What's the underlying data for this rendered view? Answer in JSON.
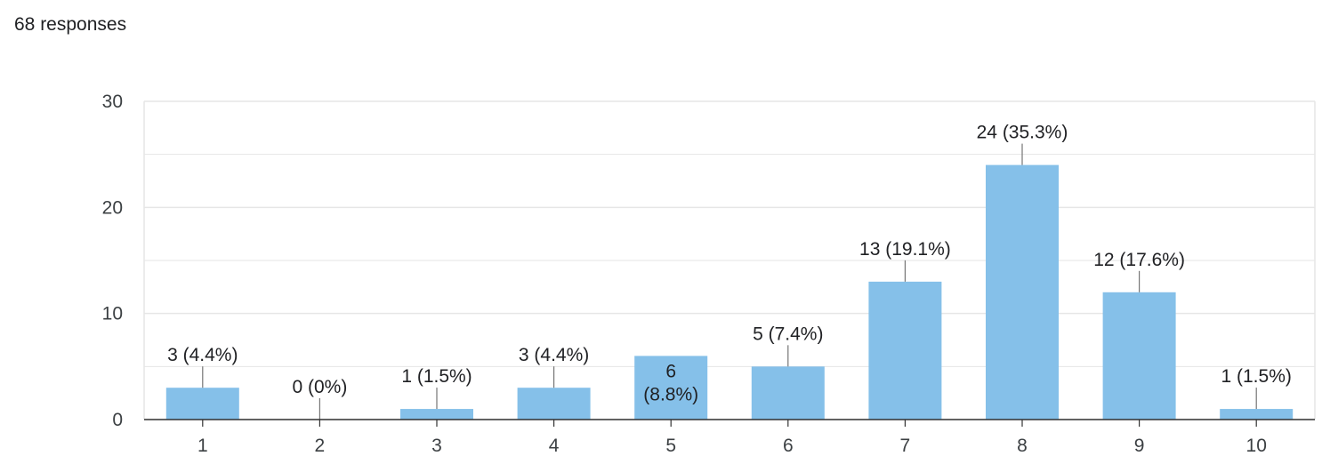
{
  "summary": {
    "responses_text": "68 responses"
  },
  "chart_data": {
    "type": "bar",
    "categories": [
      "1",
      "2",
      "3",
      "4",
      "5",
      "6",
      "7",
      "8",
      "9",
      "10"
    ],
    "values": [
      3,
      0,
      1,
      3,
      6,
      5,
      13,
      24,
      12,
      1
    ],
    "data_labels": [
      "3 (4.4%)",
      "0 (0%)",
      "1 (1.5%)",
      "3 (4.4%)",
      "6 (8.8%)",
      "5 (7.4%)",
      "13 (19.1%)",
      "24 (35.3%)",
      "12 (17.6%)",
      "1 (1.5%)"
    ],
    "yticks": [
      0,
      10,
      20,
      30
    ],
    "ylim": [
      0,
      30
    ],
    "title": "",
    "xlabel": "",
    "ylabel": "",
    "grid": true,
    "bar_color": "#85c0e9",
    "gridline_color": "#e6e6e6",
    "axis_color": "#333333"
  }
}
